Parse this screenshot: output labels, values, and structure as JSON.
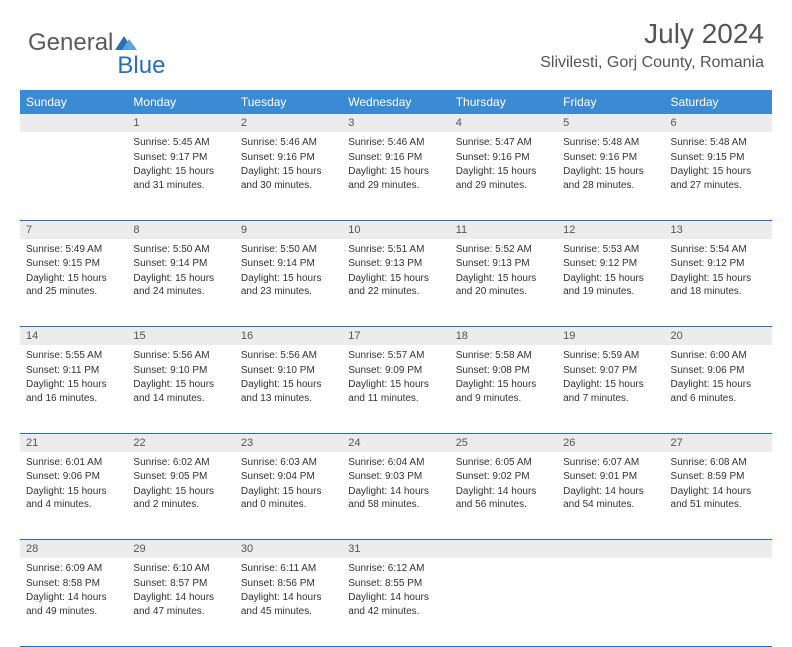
{
  "logo": {
    "text1": "General",
    "text2": "Blue"
  },
  "title": "July 2024",
  "location": "Slivilesti, Gorj County, Romania",
  "colors": {
    "header_bg": "#3b8bd4",
    "header_text": "#ffffff",
    "daynum_bg": "#ececec",
    "rule": "#2a6fb5",
    "logo_gray": "#5a5a5a",
    "logo_blue": "#2a6fb5"
  },
  "days": [
    "Sunday",
    "Monday",
    "Tuesday",
    "Wednesday",
    "Thursday",
    "Friday",
    "Saturday"
  ],
  "weeks": [
    [
      null,
      {
        "n": "1",
        "sr": "Sunrise: 5:45 AM",
        "ss": "Sunset: 9:17 PM",
        "dl": "Daylight: 15 hours and 31 minutes."
      },
      {
        "n": "2",
        "sr": "Sunrise: 5:46 AM",
        "ss": "Sunset: 9:16 PM",
        "dl": "Daylight: 15 hours and 30 minutes."
      },
      {
        "n": "3",
        "sr": "Sunrise: 5:46 AM",
        "ss": "Sunset: 9:16 PM",
        "dl": "Daylight: 15 hours and 29 minutes."
      },
      {
        "n": "4",
        "sr": "Sunrise: 5:47 AM",
        "ss": "Sunset: 9:16 PM",
        "dl": "Daylight: 15 hours and 29 minutes."
      },
      {
        "n": "5",
        "sr": "Sunrise: 5:48 AM",
        "ss": "Sunset: 9:16 PM",
        "dl": "Daylight: 15 hours and 28 minutes."
      },
      {
        "n": "6",
        "sr": "Sunrise: 5:48 AM",
        "ss": "Sunset: 9:15 PM",
        "dl": "Daylight: 15 hours and 27 minutes."
      }
    ],
    [
      {
        "n": "7",
        "sr": "Sunrise: 5:49 AM",
        "ss": "Sunset: 9:15 PM",
        "dl": "Daylight: 15 hours and 25 minutes."
      },
      {
        "n": "8",
        "sr": "Sunrise: 5:50 AM",
        "ss": "Sunset: 9:14 PM",
        "dl": "Daylight: 15 hours and 24 minutes."
      },
      {
        "n": "9",
        "sr": "Sunrise: 5:50 AM",
        "ss": "Sunset: 9:14 PM",
        "dl": "Daylight: 15 hours and 23 minutes."
      },
      {
        "n": "10",
        "sr": "Sunrise: 5:51 AM",
        "ss": "Sunset: 9:13 PM",
        "dl": "Daylight: 15 hours and 22 minutes."
      },
      {
        "n": "11",
        "sr": "Sunrise: 5:52 AM",
        "ss": "Sunset: 9:13 PM",
        "dl": "Daylight: 15 hours and 20 minutes."
      },
      {
        "n": "12",
        "sr": "Sunrise: 5:53 AM",
        "ss": "Sunset: 9:12 PM",
        "dl": "Daylight: 15 hours and 19 minutes."
      },
      {
        "n": "13",
        "sr": "Sunrise: 5:54 AM",
        "ss": "Sunset: 9:12 PM",
        "dl": "Daylight: 15 hours and 18 minutes."
      }
    ],
    [
      {
        "n": "14",
        "sr": "Sunrise: 5:55 AM",
        "ss": "Sunset: 9:11 PM",
        "dl": "Daylight: 15 hours and 16 minutes."
      },
      {
        "n": "15",
        "sr": "Sunrise: 5:56 AM",
        "ss": "Sunset: 9:10 PM",
        "dl": "Daylight: 15 hours and 14 minutes."
      },
      {
        "n": "16",
        "sr": "Sunrise: 5:56 AM",
        "ss": "Sunset: 9:10 PM",
        "dl": "Daylight: 15 hours and 13 minutes."
      },
      {
        "n": "17",
        "sr": "Sunrise: 5:57 AM",
        "ss": "Sunset: 9:09 PM",
        "dl": "Daylight: 15 hours and 11 minutes."
      },
      {
        "n": "18",
        "sr": "Sunrise: 5:58 AM",
        "ss": "Sunset: 9:08 PM",
        "dl": "Daylight: 15 hours and 9 minutes."
      },
      {
        "n": "19",
        "sr": "Sunrise: 5:59 AM",
        "ss": "Sunset: 9:07 PM",
        "dl": "Daylight: 15 hours and 7 minutes."
      },
      {
        "n": "20",
        "sr": "Sunrise: 6:00 AM",
        "ss": "Sunset: 9:06 PM",
        "dl": "Daylight: 15 hours and 6 minutes."
      }
    ],
    [
      {
        "n": "21",
        "sr": "Sunrise: 6:01 AM",
        "ss": "Sunset: 9:06 PM",
        "dl": "Daylight: 15 hours and 4 minutes."
      },
      {
        "n": "22",
        "sr": "Sunrise: 6:02 AM",
        "ss": "Sunset: 9:05 PM",
        "dl": "Daylight: 15 hours and 2 minutes."
      },
      {
        "n": "23",
        "sr": "Sunrise: 6:03 AM",
        "ss": "Sunset: 9:04 PM",
        "dl": "Daylight: 15 hours and 0 minutes."
      },
      {
        "n": "24",
        "sr": "Sunrise: 6:04 AM",
        "ss": "Sunset: 9:03 PM",
        "dl": "Daylight: 14 hours and 58 minutes."
      },
      {
        "n": "25",
        "sr": "Sunrise: 6:05 AM",
        "ss": "Sunset: 9:02 PM",
        "dl": "Daylight: 14 hours and 56 minutes."
      },
      {
        "n": "26",
        "sr": "Sunrise: 6:07 AM",
        "ss": "Sunset: 9:01 PM",
        "dl": "Daylight: 14 hours and 54 minutes."
      },
      {
        "n": "27",
        "sr": "Sunrise: 6:08 AM",
        "ss": "Sunset: 8:59 PM",
        "dl": "Daylight: 14 hours and 51 minutes."
      }
    ],
    [
      {
        "n": "28",
        "sr": "Sunrise: 6:09 AM",
        "ss": "Sunset: 8:58 PM",
        "dl": "Daylight: 14 hours and 49 minutes."
      },
      {
        "n": "29",
        "sr": "Sunrise: 6:10 AM",
        "ss": "Sunset: 8:57 PM",
        "dl": "Daylight: 14 hours and 47 minutes."
      },
      {
        "n": "30",
        "sr": "Sunrise: 6:11 AM",
        "ss": "Sunset: 8:56 PM",
        "dl": "Daylight: 14 hours and 45 minutes."
      },
      {
        "n": "31",
        "sr": "Sunrise: 6:12 AM",
        "ss": "Sunset: 8:55 PM",
        "dl": "Daylight: 14 hours and 42 minutes."
      },
      null,
      null,
      null
    ]
  ]
}
